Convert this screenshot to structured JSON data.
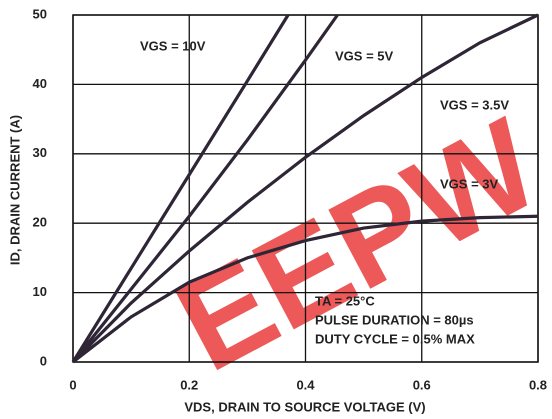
{
  "chart_data": {
    "type": "line",
    "xlabel": "VDS, DRAIN TO SOURCE VOLTAGE (V)",
    "ylabel": "ID, DRAIN CURRENT (A)",
    "xlim": [
      0,
      0.8
    ],
    "xticks": [
      0,
      0.2,
      0.4,
      0.6,
      0.8
    ],
    "ylim": [
      0,
      50
    ],
    "yticks": [
      0,
      10,
      20,
      30,
      40,
      50
    ],
    "grid": true,
    "series": [
      {
        "name": "VGS = 10V",
        "color": "#2e2536",
        "x": [
          0,
          0.1,
          0.2,
          0.3,
          0.37
        ],
        "values": [
          0,
          13.5,
          27,
          40.5,
          50
        ]
      },
      {
        "name": "VGS = 5V",
        "color": "#2e2536",
        "x": [
          0,
          0.1,
          0.2,
          0.3,
          0.4,
          0.455
        ],
        "values": [
          0,
          10.5,
          21,
          32,
          43.5,
          50
        ]
      },
      {
        "name": "VGS = 3.5V",
        "color": "#2e2536",
        "x": [
          0,
          0.1,
          0.2,
          0.3,
          0.4,
          0.5,
          0.6,
          0.7,
          0.8
        ],
        "values": [
          0,
          8.5,
          16,
          23,
          29.5,
          35.5,
          41,
          46,
          50
        ]
      },
      {
        "name": "VGS = 3V",
        "color": "#2e2536",
        "x": [
          0,
          0.1,
          0.2,
          0.3,
          0.4,
          0.5,
          0.6,
          0.7,
          0.8
        ],
        "values": [
          0,
          6.5,
          11.5,
          15,
          17.5,
          19.3,
          20.3,
          20.8,
          21
        ]
      }
    ],
    "annotations": [
      "TA = 25°C",
      "PULSE DURATION = 80µs",
      "DUTY CYCLE = 0.5% MAX"
    ],
    "watermark": "EEPW"
  }
}
